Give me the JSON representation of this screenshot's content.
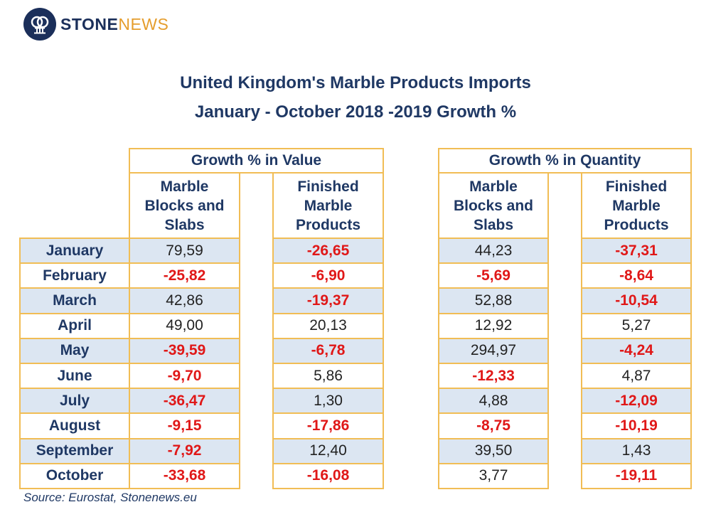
{
  "brand": {
    "logo_part1": "STONE",
    "logo_part2": "NEWS",
    "logo_icon": "stone-column-icon"
  },
  "colors": {
    "navy": "#1f3864",
    "orange": "#f1bd55",
    "shade": "#dce6f2",
    "negative": "#e01818"
  },
  "chart_data": {
    "type": "table",
    "title": "United Kingdom's Marble Products Imports",
    "subtitle": "January - October 2018 -2019 Growth %",
    "groups": [
      "Growth % in Value",
      "Growth % in Quantity"
    ],
    "columns": [
      {
        "group": "Growth % in Value",
        "name": "Marble Blocks and Slabs"
      },
      {
        "group": "Growth % in Value",
        "name": "Finished Marble Products"
      },
      {
        "group": "Growth % in Quantity",
        "name": "Marble Blocks and Slabs"
      },
      {
        "group": "Growth % in Quantity",
        "name": "Finished Marble Products"
      }
    ],
    "subheaders": {
      "blocks": [
        "Marble",
        "Blocks and",
        "Slabs"
      ],
      "finished": [
        "Finished",
        "Marble",
        "Products"
      ]
    },
    "rows": [
      {
        "month": "January",
        "values": [
          "79,59",
          "-26,65",
          "44,23",
          "-37,31"
        ]
      },
      {
        "month": "February",
        "values": [
          "-25,82",
          "-6,90",
          "-5,69",
          "-8,64"
        ]
      },
      {
        "month": "March",
        "values": [
          "42,86",
          "-19,37",
          "52,88",
          "-10,54"
        ]
      },
      {
        "month": "April",
        "values": [
          "49,00",
          "20,13",
          "12,92",
          "5,27"
        ]
      },
      {
        "month": "May",
        "values": [
          "-39,59",
          "-6,78",
          "294,97",
          "-4,24"
        ]
      },
      {
        "month": "June",
        "values": [
          "-9,70",
          "5,86",
          "-12,33",
          "4,87"
        ]
      },
      {
        "month": "July",
        "values": [
          "-36,47",
          "1,30",
          "4,88",
          "-12,09"
        ]
      },
      {
        "month": "August",
        "values": [
          "-9,15",
          "-17,86",
          "-8,75",
          "-10,19"
        ]
      },
      {
        "month": "September",
        "values": [
          "-7,92",
          "12,40",
          "39,50",
          "1,43"
        ]
      },
      {
        "month": "October",
        "values": [
          "-33,68",
          "-16,08",
          "3,77",
          "-19,11"
        ]
      }
    ],
    "shaded_rows": [
      0,
      2,
      4,
      6,
      8
    ],
    "source": "Source: Eurostat, Stonenews.eu"
  }
}
